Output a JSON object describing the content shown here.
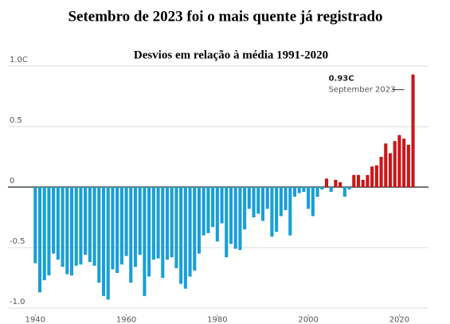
{
  "chart_data": {
    "type": "bar",
    "title": "Setembro de 2023 foi o mais quente já registrado",
    "subtitle": "Desvios em relação à média 1991-2020",
    "x": [
      1940,
      1941,
      1942,
      1943,
      1944,
      1945,
      1946,
      1947,
      1948,
      1949,
      1950,
      1951,
      1952,
      1953,
      1954,
      1955,
      1956,
      1957,
      1958,
      1959,
      1960,
      1961,
      1962,
      1963,
      1964,
      1965,
      1966,
      1967,
      1968,
      1969,
      1970,
      1971,
      1972,
      1973,
      1974,
      1975,
      1976,
      1977,
      1978,
      1979,
      1980,
      1981,
      1982,
      1983,
      1984,
      1985,
      1986,
      1987,
      1988,
      1989,
      1990,
      1991,
      1992,
      1993,
      1994,
      1995,
      1996,
      1997,
      1998,
      1999,
      2000,
      2001,
      2002,
      2003,
      2004,
      2005,
      2006,
      2007,
      2008,
      2009,
      2010,
      2011,
      2012,
      2013,
      2014,
      2015,
      2016,
      2017,
      2018,
      2019,
      2020,
      2021,
      2022,
      2023
    ],
    "values": [
      -0.63,
      -0.87,
      -0.77,
      -0.73,
      -0.55,
      -0.6,
      -0.66,
      -0.72,
      -0.73,
      -0.65,
      -0.64,
      -0.56,
      -0.62,
      -0.65,
      -0.79,
      -0.9,
      -0.93,
      -0.68,
      -0.71,
      -0.64,
      -0.57,
      -0.79,
      -0.66,
      -0.56,
      -0.9,
      -0.74,
      -0.6,
      -0.59,
      -0.75,
      -0.6,
      -0.58,
      -0.67,
      -0.8,
      -0.84,
      -0.74,
      -0.69,
      -0.55,
      -0.4,
      -0.38,
      -0.33,
      -0.45,
      -0.3,
      -0.58,
      -0.47,
      -0.51,
      -0.52,
      -0.35,
      -0.18,
      -0.25,
      -0.22,
      -0.28,
      -0.18,
      -0.41,
      -0.37,
      -0.24,
      -0.19,
      -0.4,
      -0.08,
      -0.05,
      -0.04,
      -0.18,
      -0.24,
      -0.08,
      -0.02,
      0.07,
      -0.04,
      0.06,
      0.04,
      -0.08,
      -0.02,
      0.1,
      0.1,
      0.06,
      0.1,
      0.17,
      0.18,
      0.25,
      0.36,
      0.28,
      0.38,
      0.43,
      0.4,
      0.35,
      0.93
    ],
    "positive_color": "#cc1518",
    "negative_color": "#1a9fd4",
    "xlim": [
      1934,
      2025
    ],
    "xticks": [
      1940,
      1960,
      1980,
      2000,
      2020
    ],
    "ylim": [
      -1.05,
      1.0
    ],
    "yticks": [
      {
        "value": 1.0,
        "label": "1.0C"
      },
      0.5,
      0,
      -0.5,
      {
        "value": -1.0,
        "label": "-1.0"
      }
    ],
    "grid": true,
    "annotation": {
      "value_label": "0.93C",
      "text": "September 2023"
    }
  }
}
